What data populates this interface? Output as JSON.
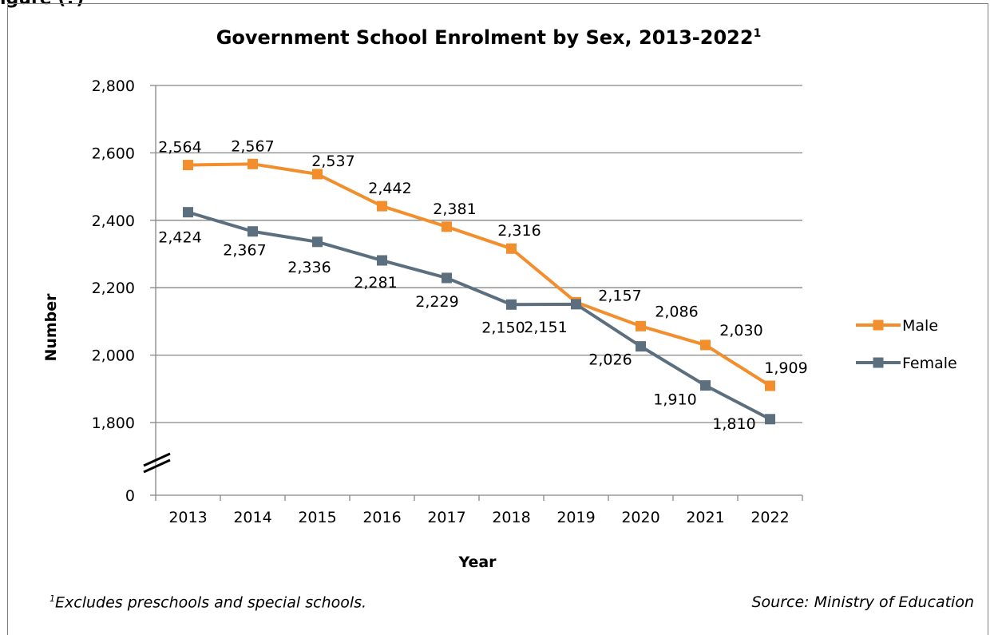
{
  "figure_label": "igure (?)",
  "footnote": {
    "marker": "1",
    "text": "Excludes preschools and special schools."
  },
  "source": "Source: Ministry of Education",
  "colors": {
    "male": "#f28e2b",
    "female": "#5c6f7e",
    "grid": "#868686",
    "axis": "#868686"
  },
  "chart_data": {
    "type": "line",
    "title": "Government School Enrolment by Sex, 2013-2022",
    "title_superscript": "1",
    "xlabel": "Year",
    "ylabel": "Number",
    "categories": [
      "2013",
      "2014",
      "2015",
      "2016",
      "2017",
      "2018",
      "2019",
      "2020",
      "2021",
      "2022"
    ],
    "y_ticks": [
      0,
      1800,
      2000,
      2200,
      2400,
      2600,
      2800
    ],
    "y_tick_labels": [
      "0",
      "1,800",
      "2,000",
      "2,200",
      "2,400",
      "2,600",
      "2,800"
    ],
    "ylim": [
      1800,
      2800
    ],
    "axis_break": true,
    "grid": true,
    "legend_position": "right",
    "series": [
      {
        "name": "Male",
        "values": [
          2564,
          2567,
          2537,
          2442,
          2381,
          2316,
          2157,
          2086,
          2030,
          1909
        ],
        "labels": [
          "2,564",
          "2,567",
          "2,537",
          "2,442",
          "2,381",
          "2,316",
          "2,157",
          "2,086",
          "2,030",
          "1,909"
        ]
      },
      {
        "name": "Female",
        "values": [
          2424,
          2367,
          2336,
          2281,
          2229,
          2150,
          2151,
          2026,
          1910,
          1810
        ],
        "labels": [
          "2,424",
          "2,367",
          "2,336",
          "2,281",
          "2,229",
          "2,150",
          "2,151",
          "2,026",
          "1,910",
          "1,810"
        ]
      }
    ]
  }
}
